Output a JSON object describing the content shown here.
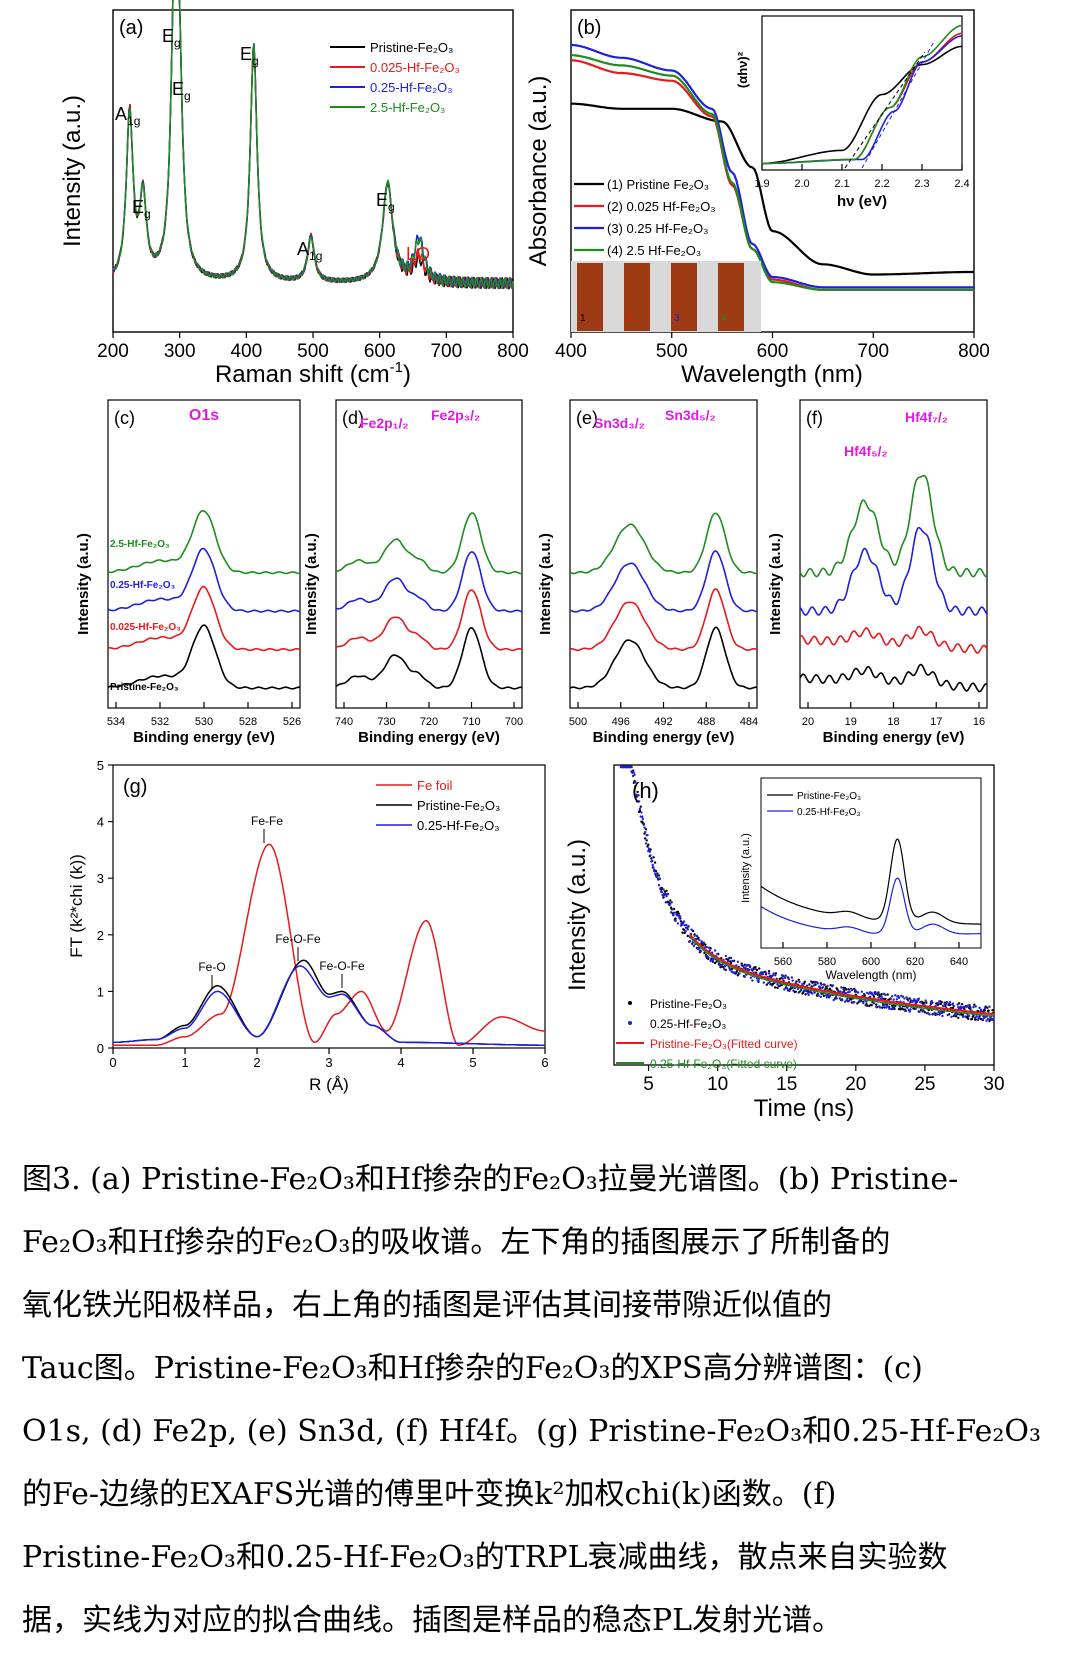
{
  "colors": {
    "black": "#000000",
    "red": "#e8191c",
    "blue": "#1f1fe0",
    "green": "#1e8c1e",
    "magenta": "#e01ae0",
    "lo_red": "#e8191c"
  },
  "panels": {
    "a": {
      "tag": "(a)",
      "xlabel": "Raman shift (cm",
      "xlabel_sup": "-1",
      "xlabel_end": ")",
      "ylabel": "Intensity (a.u.)",
      "xticks": [
        "200",
        "300",
        "400",
        "500",
        "600",
        "700",
        "800"
      ],
      "legend": [
        "Pristine-Fe₂O₃",
        "0.025-Hf-Fe₂O₃",
        "0.25-Hf-Fe₂O₃",
        "2.5-Hf-Fe₂O₃"
      ],
      "peak_labels": [
        "A1g",
        "Eg",
        "Eg",
        "Eg",
        "Eg",
        "A1g",
        "Eg",
        "LO"
      ]
    },
    "b": {
      "tag": "(b)",
      "xlabel": "Wavelength (nm)",
      "ylabel": "Absorbance (a.u.)",
      "xticks": [
        "400",
        "500",
        "600",
        "700",
        "800"
      ],
      "legend": [
        "(1) Pristine Fe₂O₃",
        "(2) 0.025 Hf-Fe₂O₃",
        "(3) 0.25 Hf-Fe₂O₃",
        "(4) 2.5 Hf-Fe₂O₃"
      ],
      "inset_xlabel": "hν (eV)",
      "inset_ylabel": "(αhν)²",
      "inset_xticks": [
        "1.9",
        "2.0",
        "2.1",
        "2.2",
        "2.3",
        "2.4"
      ],
      "photo_labels": [
        "1",
        "2",
        "3",
        "4"
      ]
    },
    "c": {
      "tag": "(c)",
      "title": "O1s",
      "xlabel": "Binding energy (eV)",
      "ylabel": "Intensity (a.u.)",
      "xticks": [
        "534",
        "532",
        "530",
        "528",
        "526"
      ],
      "labels": [
        "2.5-Hf-Fe₂O₃",
        "0.25-Hf-Fe₂O₃",
        "0.025-Hf-Fe₂O₃",
        "Pristine-Fe₂O₃"
      ]
    },
    "d": {
      "tag": "(d)",
      "peak1": "Fe2p₁/₂",
      "peak2": "Fe2p₃/₂",
      "xlabel": "Binding energy (eV)",
      "ylabel": "Intensity (a.u.)",
      "xticks": [
        "740",
        "730",
        "720",
        "710",
        "700"
      ]
    },
    "e": {
      "tag": "(e)",
      "peak1": "Sn3d₃/₂",
      "peak2": "Sn3d₅/₂",
      "xlabel": "Binding energy (eV)",
      "ylabel": "Intensity (a.u.)",
      "xticks": [
        "500",
        "496",
        "492",
        "488",
        "484"
      ]
    },
    "f": {
      "tag": "(f)",
      "peak1": "Hf4f₅/₂",
      "peak2": "Hf4f₇/₂",
      "xlabel": "Binding energy (eV)",
      "ylabel": "Intensity (a.u.)",
      "xticks": [
        "20",
        "19",
        "18",
        "17",
        "16"
      ]
    },
    "g": {
      "tag": "(g)",
      "xlabel": "R (Å)",
      "ylabel": "FT (k²*chi (k))",
      "xticks": [
        "0",
        "1",
        "2",
        "3",
        "4",
        "5",
        "6"
      ],
      "yticks": [
        "0",
        "1",
        "2",
        "3",
        "4",
        "5"
      ],
      "legend": [
        "Fe foil",
        "Pristine-Fe₂O₃",
        "0.25-Hf-Fe₂O₃"
      ],
      "annotations": [
        "Fe-Fe",
        "Fe-O",
        "Fe-O-Fe",
        "Fe-O-Fe"
      ]
    },
    "h": {
      "tag": "(h)",
      "xlabel": "Time (ns)",
      "ylabel": "Intensity (a.u.)",
      "xticks": [
        "5",
        "10",
        "15",
        "20",
        "25",
        "30"
      ],
      "legend": [
        "Pristine-Fe₂O₃",
        "0.25-Hf-Fe₂O₃",
        "Pristine-Fe₂O₃(Fitted curve)",
        "0.25-Hf-Fe₂O₃(Fitted curve)"
      ],
      "inset_legend": [
        "Pristine-Fe₂O₃",
        "0.25-Hf-Fe₂O₃"
      ],
      "inset_xlabel": "Wavelength (nm)",
      "inset_ylabel": "Intensity (a.u.)",
      "inset_xticks": [
        "560",
        "580",
        "600",
        "620",
        "640"
      ]
    }
  },
  "caption": {
    "lines": [
      "图3. (a) Pristine-Fe₂O₃和Hf掺杂的Fe₂O₃拉曼光谱图。(b) Pristine-",
      "Fe₂O₃和Hf掺杂的Fe₂O₃的吸收谱。左下角的插图展示了所制备的",
      "氧化铁光阳极样品，右上角的插图是评估其间接带隙近似值的",
      "Tauc图。Pristine-Fe₂O₃和Hf掺杂的Fe₂O₃的XPS高分辨谱图：(c)",
      "O1s, (d) Fe2p, (e) Sn3d, (f) Hf4f。(g) Pristine-Fe₂O₃和0.25-Hf-Fe₂O₃",
      "的Fe-边缘的EXAFS光谱的傅里叶变换k²加权chi(k)函数。(f)",
      "Pristine-Fe₂O₃和0.25-Hf-Fe₂O₃的TRPL衰减曲线，散点来自实验数",
      "据，实线为对应的拟合曲线。插图是样品的稳态PL发射光谱。"
    ]
  },
  "chart_data": [
    {
      "panel": "a",
      "type": "line",
      "xlabel": "Raman shift (cm-1)",
      "ylabel": "Intensity (a.u.)",
      "xlim": [
        200,
        800
      ],
      "series": [
        {
          "name": "Pristine-Fe₂O₃",
          "peaks": [
            [
              225,
              0.62
            ],
            [
              245,
              0.3
            ],
            [
              292,
              0.95
            ],
            [
              299,
              0.7
            ],
            [
              411,
              0.88
            ],
            [
              497,
              0.17
            ],
            [
              612,
              0.37
            ],
            [
              659,
              0.08
            ]
          ]
        },
        {
          "name": "0.025-Hf-Fe₂O₃",
          "peaks": [
            [
              225,
              0.62
            ],
            [
              245,
              0.3
            ],
            [
              292,
              0.95
            ],
            [
              299,
              0.7
            ],
            [
              411,
              0.88
            ],
            [
              497,
              0.17
            ],
            [
              612,
              0.37
            ],
            [
              659,
              0.1
            ]
          ]
        },
        {
          "name": "0.25-Hf-Fe₂O₃",
          "peaks": [
            [
              225,
              0.62
            ],
            [
              245,
              0.3
            ],
            [
              292,
              0.95
            ],
            [
              299,
              0.7
            ],
            [
              411,
              0.88
            ],
            [
              497,
              0.17
            ],
            [
              612,
              0.37
            ],
            [
              659,
              0.16
            ]
          ]
        },
        {
          "name": "2.5-Hf-Fe₂O₃",
          "peaks": [
            [
              225,
              0.62
            ],
            [
              245,
              0.3
            ],
            [
              292,
              0.95
            ],
            [
              299,
              0.7
            ],
            [
              411,
              0.88
            ],
            [
              497,
              0.17
            ],
            [
              612,
              0.37
            ],
            [
              659,
              0.15
            ]
          ]
        }
      ]
    },
    {
      "panel": "b",
      "type": "line",
      "xlabel": "Wavelength (nm)",
      "ylabel": "Absorbance (a.u.)",
      "xlim": [
        400,
        800
      ],
      "series": [
        {
          "name": "(1) Pristine Fe₂O₃",
          "x": [
            400,
            450,
            500,
            550,
            580,
            600,
            650,
            700,
            800
          ],
          "y": [
            0.77,
            0.75,
            0.75,
            0.7,
            0.52,
            0.27,
            0.14,
            0.1,
            0.11
          ]
        },
        {
          "name": "(2) 0.025 Hf-Fe₂O₃",
          "x": [
            400,
            450,
            500,
            540,
            560,
            580,
            600,
            650,
            800
          ],
          "y": [
            0.94,
            0.89,
            0.86,
            0.72,
            0.45,
            0.2,
            0.08,
            0.04,
            0.04
          ]
        },
        {
          "name": "(3) 0.25 Hf-Fe₂O₃",
          "x": [
            400,
            450,
            500,
            540,
            560,
            580,
            600,
            650,
            800
          ],
          "y": [
            1.0,
            0.95,
            0.9,
            0.75,
            0.5,
            0.22,
            0.09,
            0.05,
            0.05
          ]
        },
        {
          "name": "(4) 2.5 Hf-Fe₂O₃",
          "x": [
            400,
            450,
            500,
            540,
            560,
            580,
            600,
            650,
            800
          ],
          "y": [
            0.96,
            0.92,
            0.88,
            0.73,
            0.46,
            0.2,
            0.07,
            0.04,
            0.04
          ]
        }
      ],
      "inset": {
        "xlabel": "hν (eV)",
        "ylabel": "(αhν)²",
        "xlim": [
          1.9,
          2.4
        ]
      }
    },
    {
      "panel": "g",
      "type": "line",
      "xlabel": "R (Å)",
      "ylabel": "FT (k²*chi (k))",
      "xlim": [
        0,
        6
      ],
      "ylim": [
        0,
        5
      ],
      "series": [
        {
          "name": "Fe foil",
          "x": [
            0,
            0.6,
            1.0,
            1.5,
            2.17,
            2.8,
            3.1,
            3.45,
            3.8,
            4.35,
            4.8,
            5.4,
            6
          ],
          "y": [
            0.05,
            0.05,
            0.2,
            0.6,
            3.6,
            0.1,
            0.6,
            1.0,
            0.3,
            2.25,
            0.05,
            0.55,
            0.3
          ]
        },
        {
          "name": "Pristine-Fe₂O₃",
          "x": [
            0,
            0.6,
            1.0,
            1.45,
            2.0,
            2.65,
            3.0,
            3.18,
            3.6,
            4.0,
            6
          ],
          "y": [
            0.1,
            0.15,
            0.4,
            1.1,
            0.2,
            1.55,
            0.95,
            1.0,
            0.4,
            0.1,
            0.05
          ]
        },
        {
          "name": "0.25-Hf-Fe₂O₃",
          "x": [
            0,
            0.6,
            1.0,
            1.45,
            2.0,
            2.6,
            3.0,
            3.18,
            3.6,
            4.0,
            6
          ],
          "y": [
            0.1,
            0.15,
            0.35,
            1.0,
            0.2,
            1.45,
            0.9,
            0.95,
            0.4,
            0.1,
            0.05
          ]
        }
      ]
    },
    {
      "panel": "h",
      "type": "scatter",
      "xlabel": "Time (ns)",
      "ylabel": "Intensity (a.u.)",
      "xlim": [
        2.5,
        30
      ],
      "series": [
        {
          "name": "Pristine-Fe₂O₃"
        },
        {
          "name": "0.25-Hf-Fe₂O₃"
        },
        {
          "name": "Pristine-Fe₂O₃(Fitted curve)"
        },
        {
          "name": "0.25-Hf-Fe₂O₃(Fitted curve)"
        }
      ],
      "inset": {
        "xlabel": "Wavelength (nm)",
        "ylabel": "Intensity (a.u.)",
        "xlim": [
          550,
          650
        ]
      }
    }
  ]
}
